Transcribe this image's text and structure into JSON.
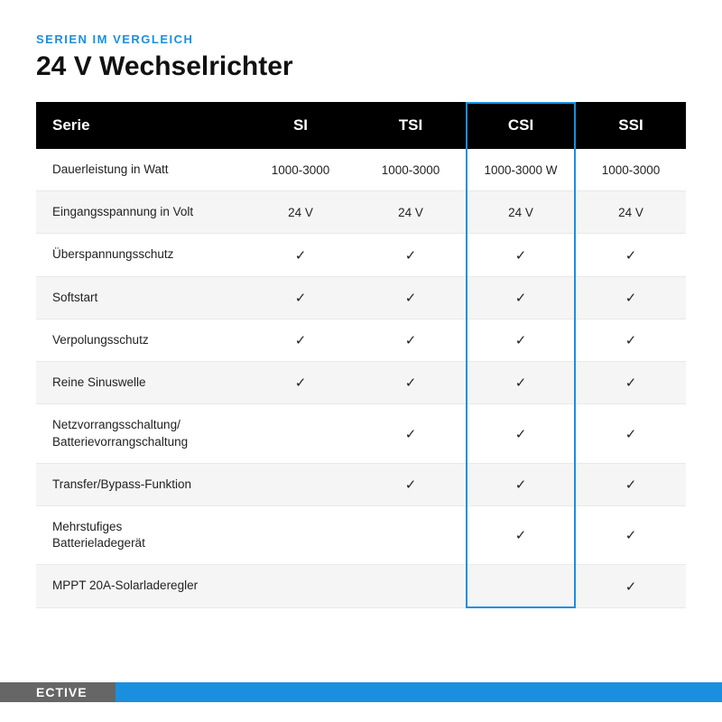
{
  "colors": {
    "accent": "#1a8fe0",
    "header_bg": "#000000",
    "header_fg": "#ffffff",
    "row_alt_bg": "#f5f5f5",
    "row_bg": "#ffffff",
    "grid": "#e9e9e9",
    "text": "#222222",
    "eyebrow": "#1a8fe0",
    "brand_bg": "#666666"
  },
  "eyebrow": "SERIEN IM VERGLEICH",
  "title": "24 V Wechselrichter",
  "table": {
    "first_column_header": "Serie",
    "columns": [
      "SI",
      "TSI",
      "CSI",
      "SSI"
    ],
    "highlight_column_index": 2,
    "checkmark": "✓",
    "rows": [
      {
        "feature": "Dauerleistung in Watt",
        "values": [
          "1000-3000",
          "1000-3000",
          "1000-3000 W",
          "1000-3000"
        ]
      },
      {
        "feature": "Eingangsspannung in Volt",
        "values": [
          "24 V",
          "24 V",
          "24 V",
          "24 V"
        ]
      },
      {
        "feature": "Überspannungsschutz",
        "values": [
          true,
          true,
          true,
          true
        ]
      },
      {
        "feature": "Softstart",
        "values": [
          true,
          true,
          true,
          true
        ]
      },
      {
        "feature": "Verpolungsschutz",
        "values": [
          true,
          true,
          true,
          true
        ]
      },
      {
        "feature": "Reine Sinuswelle",
        "values": [
          true,
          true,
          true,
          true
        ]
      },
      {
        "feature": "Netzvorrangsschaltung/\nBatterievorrangschaltung",
        "values": [
          false,
          true,
          true,
          true
        ]
      },
      {
        "feature": "Transfer/Bypass-Funktion",
        "values": [
          false,
          true,
          true,
          true
        ]
      },
      {
        "feature": "Mehrstufiges\nBatterieladegerät",
        "values": [
          false,
          false,
          true,
          true
        ]
      },
      {
        "feature": "MPPT 20A-Solarladeregler",
        "values": [
          false,
          false,
          false,
          true
        ]
      }
    ]
  },
  "brand": "ECTIVE"
}
